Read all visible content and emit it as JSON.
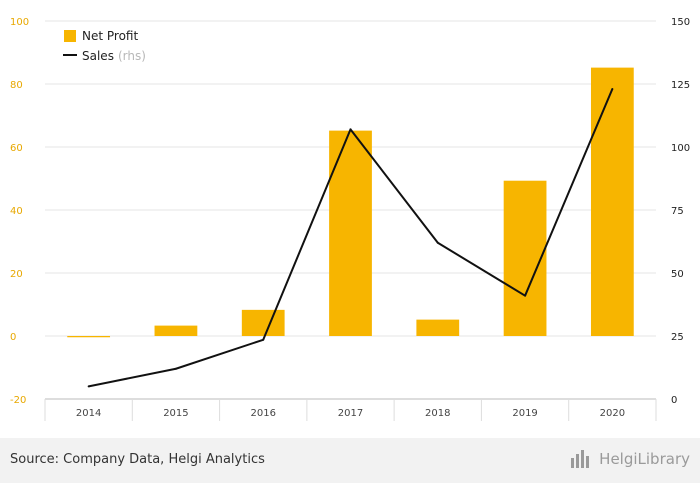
{
  "chart_data": {
    "type": "bar+line",
    "categories": [
      "2014",
      "2015",
      "2016",
      "2017",
      "2018",
      "2019",
      "2020"
    ],
    "series": [
      {
        "name": "Net Profit",
        "kind": "bar",
        "axis": "left",
        "color": "#f7b500",
        "values": [
          -0.4,
          3.3,
          8.3,
          65.2,
          5.2,
          49.3,
          85.2
        ]
      },
      {
        "name": "Sales",
        "kind": "line",
        "axis": "right",
        "color": "#111111",
        "values": [
          5,
          12,
          23.5,
          107,
          62,
          41,
          123
        ]
      }
    ],
    "y_left": {
      "ticks": [
        "100",
        "80",
        "60",
        "40",
        "20",
        "0",
        "-20"
      ],
      "ylim": [
        -20,
        100
      ]
    },
    "y_right": {
      "ticks": [
        "150",
        "125",
        "100",
        "75",
        "50",
        "25",
        "0"
      ],
      "ylim": [
        0,
        150
      ]
    },
    "legend": {
      "position": "top-left",
      "bar_label": "Net Profit",
      "line_label": "Sales",
      "line_suffix": "(rhs)"
    }
  },
  "footer": {
    "source": "Source: Company Data, Helgi Analytics",
    "brand": "HelgiLibrary"
  }
}
